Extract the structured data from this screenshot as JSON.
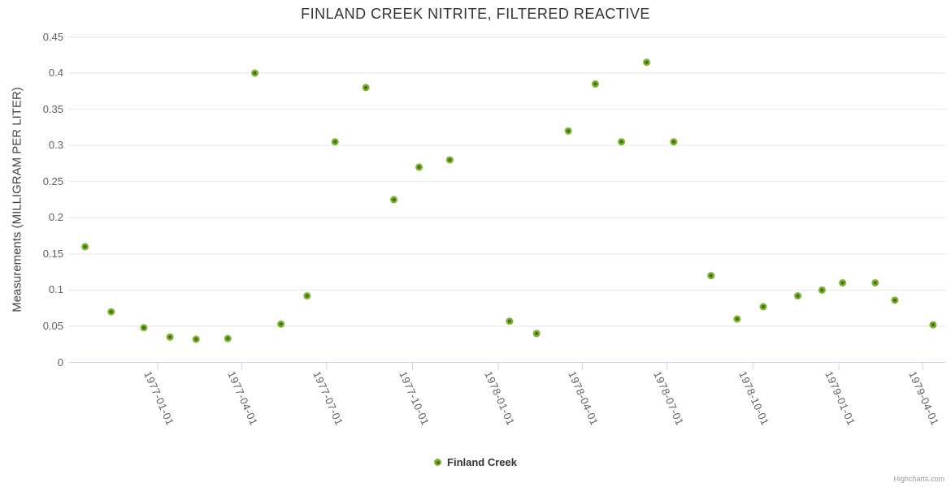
{
  "chart": {
    "credits": "Highcharts.com"
  },
  "legend": {
    "series_label": "Finland Creek",
    "marker_color": "#7cb32e",
    "marker_center_color": "#426e0b"
  },
  "chart_data": {
    "type": "scatter",
    "title": "FINLAND CREEK NITRITE, FILTERED REACTIVE",
    "xlabel": "",
    "ylabel": "Measurements (MILLIGRAM PER LITER)",
    "ylim": [
      0,
      0.45
    ],
    "xlim": [
      "1976-09-27",
      "1979-04-26"
    ],
    "grid": "horizontal",
    "legend_position": "bottom-center",
    "grid_color": "#e6e6e6",
    "axis_line_color": "#ccd6eb",
    "yticks": [
      0,
      0.05,
      0.1,
      0.15,
      0.2,
      0.25,
      0.3,
      0.35,
      0.4,
      0.45
    ],
    "ytick_labels": [
      "0",
      "0.05",
      "0.1",
      "0.15",
      "0.2",
      "0.25",
      "0.3",
      "0.35",
      "0.4",
      "0.45"
    ],
    "xticks": [
      "1977-01-01",
      "1977-04-01",
      "1977-07-01",
      "1977-10-01",
      "1978-01-01",
      "1978-04-01",
      "1978-07-01",
      "1978-10-01",
      "1979-01-01",
      "1979-04-01"
    ],
    "series": [
      {
        "name": "Finland Creek",
        "color": "#7cb32e",
        "center_color": "#426e0b",
        "points": [
          {
            "x": "1976-10-15",
            "y": 0.16
          },
          {
            "x": "1976-11-12",
            "y": 0.07
          },
          {
            "x": "1976-12-17",
            "y": 0.048
          },
          {
            "x": "1977-01-14",
            "y": 0.035
          },
          {
            "x": "1977-02-11",
            "y": 0.032
          },
          {
            "x": "1977-03-17",
            "y": 0.033
          },
          {
            "x": "1977-04-15",
            "y": 0.4
          },
          {
            "x": "1977-05-13",
            "y": 0.053
          },
          {
            "x": "1977-06-10",
            "y": 0.092
          },
          {
            "x": "1977-07-10",
            "y": 0.305
          },
          {
            "x": "1977-08-12",
            "y": 0.38
          },
          {
            "x": "1977-09-11",
            "y": 0.225
          },
          {
            "x": "1977-10-08",
            "y": 0.27
          },
          {
            "x": "1977-11-10",
            "y": 0.28
          },
          {
            "x": "1978-01-13",
            "y": 0.057
          },
          {
            "x": "1978-02-11",
            "y": 0.04
          },
          {
            "x": "1978-03-17",
            "y": 0.32
          },
          {
            "x": "1978-04-15",
            "y": 0.385
          },
          {
            "x": "1978-05-13",
            "y": 0.305
          },
          {
            "x": "1978-06-09",
            "y": 0.415
          },
          {
            "x": "1978-07-08",
            "y": 0.305
          },
          {
            "x": "1978-08-17",
            "y": 0.12
          },
          {
            "x": "1978-09-14",
            "y": 0.06
          },
          {
            "x": "1978-10-12",
            "y": 0.077
          },
          {
            "x": "1978-11-18",
            "y": 0.092
          },
          {
            "x": "1978-12-14",
            "y": 0.1
          },
          {
            "x": "1979-01-05",
            "y": 0.11
          },
          {
            "x": "1979-02-09",
            "y": 0.11
          },
          {
            "x": "1979-03-02",
            "y": 0.086
          },
          {
            "x": "1979-04-12",
            "y": 0.052
          }
        ]
      }
    ]
  }
}
